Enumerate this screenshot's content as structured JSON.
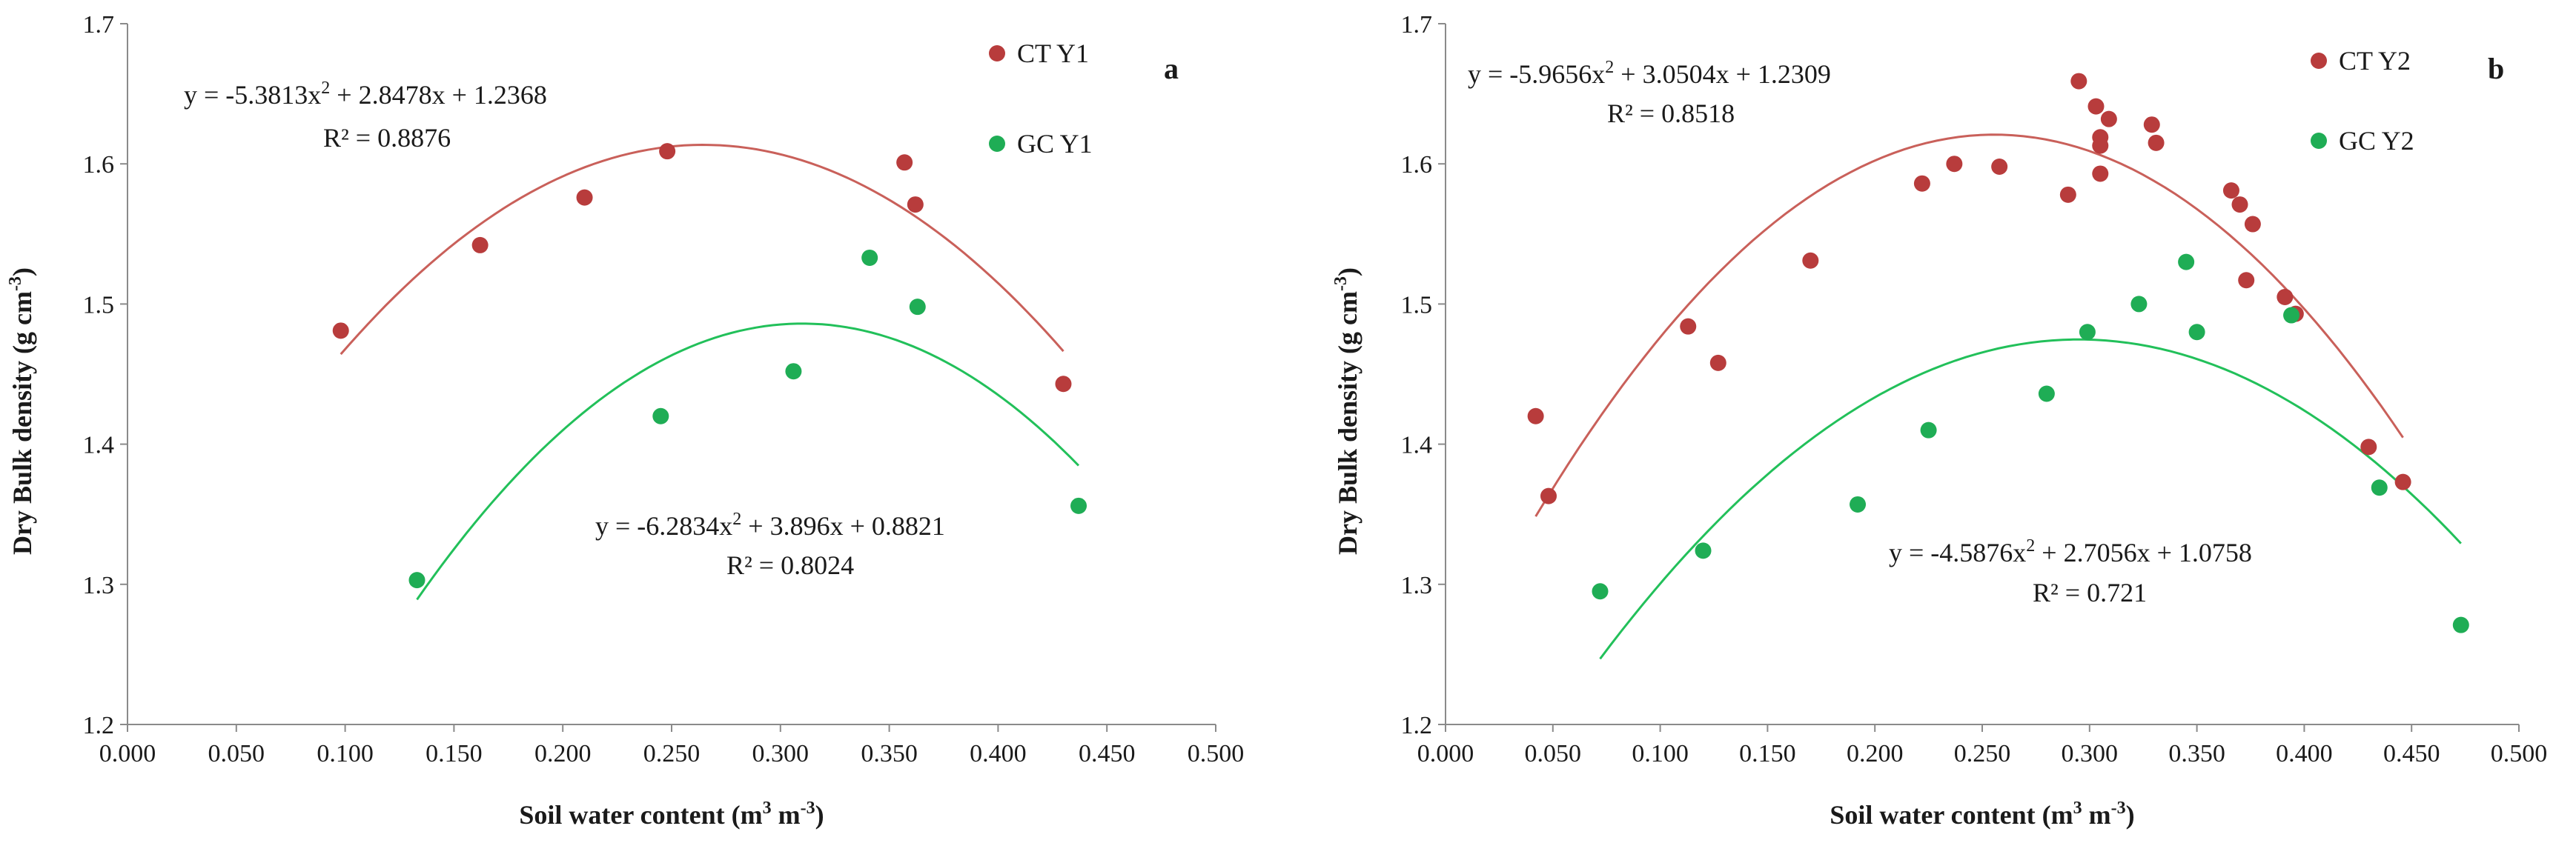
{
  "chart_data": [
    {
      "type": "scatter",
      "panel_label": "a",
      "xlabel_main": "Soil water content (m",
      "xlabel_sup1": "3",
      "xlabel_mid": " m",
      "xlabel_sup2": "-3",
      "xlabel_end": ")",
      "ylabel_main": "Dry Bulk density (g cm",
      "ylabel_sup": "-3",
      "ylabel_end": ")",
      "xlim": [
        0,
        0.5
      ],
      "ylim": [
        1.2,
        1.7
      ],
      "x_ticks": [
        "0.000",
        "0.050",
        "0.100",
        "0.150",
        "0.200",
        "0.250",
        "0.300",
        "0.350",
        "0.400",
        "0.450",
        "0.500"
      ],
      "y_ticks": [
        "1.2",
        "1.3",
        "1.4",
        "1.5",
        "1.6",
        "1.7"
      ],
      "legend_position": "top-right",
      "series": [
        {
          "name": "CT Y1",
          "color": "#b83c3c",
          "line_color": "#c9605a",
          "x": [
            0.098,
            0.162,
            0.21,
            0.248,
            0.357,
            0.362,
            0.43
          ],
          "y": [
            1.481,
            1.542,
            1.576,
            1.609,
            1.601,
            1.571,
            1.443
          ],
          "fit": {
            "a": -5.3813,
            "b": 2.8478,
            "c": 1.2368,
            "x_range": [
              0.098,
              0.43
            ]
          },
          "eq_line1": "y = -5.3813x",
          "eq_sup": "2",
          "eq_line1_end": " + 2.8478x + 1.2368",
          "eq_line2": "R² = 0.8876"
        },
        {
          "name": "GC Y1",
          "color": "#1fad55",
          "line_color": "#22c05a",
          "x": [
            0.133,
            0.245,
            0.306,
            0.341,
            0.363,
            0.437
          ],
          "y": [
            1.303,
            1.42,
            1.452,
            1.533,
            1.498,
            1.356
          ],
          "fit": {
            "a": -6.2834,
            "b": 3.896,
            "c": 0.8821,
            "x_range": [
              0.133,
              0.437
            ]
          },
          "eq_line1": "y = -6.2834x",
          "eq_sup": "2",
          "eq_line1_end": " + 3.896x + 0.8821",
          "eq_line2": "R² = 0.8024"
        }
      ]
    },
    {
      "type": "scatter",
      "panel_label": "b",
      "xlabel_main": "Soil water content (m",
      "xlabel_sup1": "3",
      "xlabel_mid": " m",
      "xlabel_sup2": "-3",
      "xlabel_end": ")",
      "ylabel_main": "Dry Bulk density (g cm",
      "ylabel_sup": "-3",
      "ylabel_end": ")",
      "xlim": [
        0,
        0.5
      ],
      "ylim": [
        1.2,
        1.7
      ],
      "x_ticks": [
        "0.000",
        "0.050",
        "0.100",
        "0.150",
        "0.200",
        "0.250",
        "0.300",
        "0.350",
        "0.400",
        "0.450",
        "0.500"
      ],
      "y_ticks": [
        "1.2",
        "1.3",
        "1.4",
        "1.5",
        "1.6",
        "1.7"
      ],
      "legend_position": "top-right",
      "series": [
        {
          "name": "CT Y2",
          "color": "#b83c3c",
          "line_color": "#c9605a",
          "x": [
            0.042,
            0.048,
            0.113,
            0.127,
            0.17,
            0.222,
            0.237,
            0.258,
            0.29,
            0.295,
            0.303,
            0.305,
            0.305,
            0.305,
            0.309,
            0.329,
            0.331,
            0.366,
            0.37,
            0.373,
            0.376,
            0.391,
            0.396,
            0.43,
            0.446
          ],
          "y": [
            1.42,
            1.363,
            1.484,
            1.458,
            1.531,
            1.586,
            1.6,
            1.598,
            1.578,
            1.659,
            1.641,
            1.619,
            1.613,
            1.593,
            1.632,
            1.628,
            1.615,
            1.581,
            1.571,
            1.517,
            1.557,
            1.505,
            1.493,
            1.398,
            1.373
          ],
          "fit": {
            "a": -5.9656,
            "b": 3.0504,
            "c": 1.2309,
            "x_range": [
              0.042,
              0.446
            ]
          },
          "eq_line1": "y = -5.9656x",
          "eq_sup": "2",
          "eq_line1_end": " + 3.0504x + 1.2309",
          "eq_line2": "R² = 0.8518"
        },
        {
          "name": "GC Y2",
          "color": "#1fad55",
          "line_color": "#22c05a",
          "x": [
            0.072,
            0.12,
            0.192,
            0.225,
            0.28,
            0.299,
            0.323,
            0.35,
            0.345,
            0.394,
            0.435,
            0.473
          ],
          "y": [
            1.295,
            1.324,
            1.357,
            1.41,
            1.436,
            1.48,
            1.5,
            1.48,
            1.53,
            1.492,
            1.369,
            1.271
          ],
          "fit": {
            "a": -4.5876,
            "b": 2.7056,
            "c": 1.0758,
            "x_range": [
              0.072,
              0.473
            ]
          },
          "eq_line1": "y = -4.5876x",
          "eq_sup": "2",
          "eq_line1_end": " + 2.7056x + 1.0758",
          "eq_line2": "R² = 0.721"
        }
      ]
    }
  ]
}
